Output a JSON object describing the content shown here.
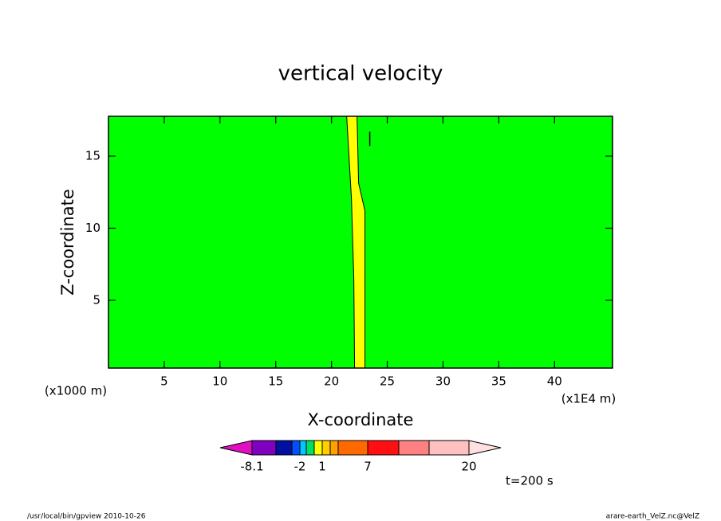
{
  "chart_data": {
    "type": "contour",
    "title": "vertical velocity",
    "xlabel": "X-coordinate",
    "ylabel": "Z-coordinate",
    "xunit": "(x1E4 m)",
    "yunit": "(x1000 m)",
    "xlim": [
      0,
      45.2
    ],
    "ylim": [
      0.3,
      17.76
    ],
    "xticks": [
      5,
      10,
      15,
      20,
      25,
      30,
      35,
      40
    ],
    "yticks": [
      5,
      10,
      15
    ],
    "background": "#00ff00",
    "regions": [
      {
        "color": "#ffff00",
        "x": [
          21.36,
          21.79,
          22.0,
          22.07,
          23.0,
          23.0,
          22.43,
          22.29
        ],
        "y": [
          17.76,
          12.02,
          6.49,
          0.3,
          0.3,
          11.19,
          13.12,
          17.76
        ]
      }
    ],
    "contours": [
      {
        "color": "#000000",
        "x": [
          23.43,
          23.43
        ],
        "y": [
          16.7,
          15.7
        ]
      }
    ],
    "colorbar_colors": [
      "#e010c0",
      "#8000c0",
      "#0010a0",
      "#0050ff",
      "#00c8ff",
      "#00e060",
      "#ffff00",
      "#ffd000",
      "#ffa000",
      "#ff6a00",
      "#ff1010",
      "#ff8080",
      "#ffc0c0",
      "#ffe0e0"
    ],
    "colorbar_labels": [
      -8.1,
      -2,
      1,
      7,
      20
    ],
    "time_label": "t=200 s",
    "footer_left": "/usr/local/bin/gpview  2010-10-26",
    "footer_right": "arare-earth_VelZ.nc@VelZ"
  }
}
